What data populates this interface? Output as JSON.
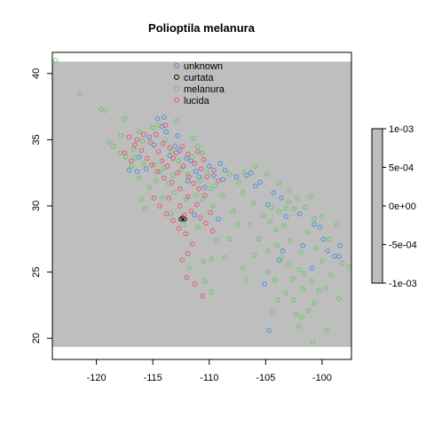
{
  "chart_data": {
    "type": "scatter",
    "title": "Polioptila melanura",
    "xlabel": "",
    "ylabel": "",
    "xlim": [
      -123.9,
      -97.4
    ],
    "ylim": [
      18.4,
      41.6
    ],
    "xticks": [
      -120,
      -115,
      -110,
      -105,
      -100
    ],
    "yticks": [
      20,
      25,
      30,
      35,
      40
    ],
    "xtick_labels": [
      "-120",
      "-115",
      "-110",
      "-105",
      "-100"
    ],
    "ytick_labels": [
      "20",
      "25",
      "30",
      "35",
      "40"
    ],
    "raster_extent": {
      "x": [
        -123.9,
        -97.4
      ],
      "y": [
        19.35,
        40.9
      ]
    },
    "raster_color": "#bebebe",
    "legend_position": "top-center",
    "colorbar": {
      "labels": [
        "1e-03",
        "5e-04",
        "0e+00",
        "-5e-04",
        "-1e-03"
      ],
      "values": [
        0.001,
        0.0005,
        0,
        -0.0005,
        -0.001
      ],
      "color": "#bebebe"
    },
    "series": [
      {
        "name": "unknown",
        "color": "#3d8fe0",
        "points": [
          [
            -114.6,
            36.6
          ],
          [
            -114.2,
            36.0
          ],
          [
            -115.3,
            35.2
          ],
          [
            -114.9,
            34.6
          ],
          [
            -113.8,
            35.6
          ],
          [
            -112.6,
            34.2
          ],
          [
            -112.0,
            33.6
          ],
          [
            -111.6,
            33.4
          ],
          [
            -111.2,
            32.6
          ],
          [
            -110.9,
            32.2
          ],
          [
            -110.0,
            33.0
          ],
          [
            -109.6,
            32.3
          ],
          [
            -108.8,
            32.0
          ],
          [
            -108.6,
            32.7
          ],
          [
            -106.3,
            32.5
          ],
          [
            -106.7,
            32.3
          ],
          [
            -105.5,
            31.8
          ],
          [
            -104.3,
            31.0
          ],
          [
            -103.6,
            30.6
          ],
          [
            -103.2,
            29.2
          ],
          [
            -102.0,
            29.4
          ],
          [
            -100.7,
            28.6
          ],
          [
            -99.9,
            27.5
          ],
          [
            -98.5,
            26.2
          ],
          [
            -99.5,
            26.6
          ],
          [
            -105.1,
            24.1
          ],
          [
            -103.8,
            25.9
          ],
          [
            -104.7,
            20.6
          ],
          [
            -116.2,
            33.7
          ],
          [
            -117.1,
            32.7
          ],
          [
            -116.4,
            32.6
          ],
          [
            -115.6,
            32.8
          ],
          [
            -113.5,
            33.8
          ],
          [
            -111.9,
            31.9
          ],
          [
            -110.4,
            31.4
          ],
          [
            -107.6,
            32.2
          ],
          [
            -105.9,
            31.5
          ],
          [
            -103.5,
            26.6
          ],
          [
            -101.7,
            27.0
          ],
          [
            -100.2,
            28.4
          ],
          [
            -98.4,
            27.0
          ],
          [
            -98.9,
            26.2
          ],
          [
            -111.3,
            29.3
          ],
          [
            -109.2,
            29.0
          ],
          [
            -112.8,
            35.3
          ],
          [
            -114.0,
            36.7
          ],
          [
            -113.0,
            34.5
          ],
          [
            -109.0,
            33.2
          ],
          [
            -104.8,
            30.1
          ],
          [
            -100.9,
            25.3
          ]
        ]
      },
      {
        "name": "curtata",
        "color": "#000000",
        "points": [
          [
            -112.5,
            29.0
          ],
          [
            -112.2,
            29.0
          ],
          [
            -112.35,
            29.1
          ]
        ]
      },
      {
        "name": "melanura",
        "color": "#62c85a",
        "points": [
          [
            -123.6,
            41.0
          ],
          [
            -121.5,
            38.5
          ],
          [
            -119.6,
            37.3
          ],
          [
            -119.3,
            37.2
          ],
          [
            -117.5,
            36.6
          ],
          [
            -116.2,
            35.6
          ],
          [
            -117.8,
            35.3
          ],
          [
            -118.5,
            34.5
          ],
          [
            -117.9,
            34.0
          ],
          [
            -116.5,
            33.6
          ],
          [
            -116.9,
            33.0
          ],
          [
            -114.9,
            33.1
          ],
          [
            -114.4,
            32.6
          ],
          [
            -113.2,
            32.3
          ],
          [
            -112.5,
            32.8
          ],
          [
            -111.5,
            33.7
          ],
          [
            -111.0,
            34.5
          ],
          [
            -110.2,
            32.5
          ],
          [
            -109.5,
            31.5
          ],
          [
            -108.2,
            32.4
          ],
          [
            -107.0,
            31.0
          ],
          [
            -106.1,
            30.2
          ],
          [
            -105.2,
            29.3
          ],
          [
            -104.5,
            29.9
          ],
          [
            -103.8,
            29.6
          ],
          [
            -103.2,
            29.8
          ],
          [
            -102.5,
            29.8
          ],
          [
            -101.5,
            29.9
          ],
          [
            -100.7,
            29.0
          ],
          [
            -101.3,
            28.0
          ],
          [
            -102.8,
            27.4
          ],
          [
            -104.0,
            27.0
          ],
          [
            -104.8,
            26.6
          ],
          [
            -103.6,
            26.1
          ],
          [
            -103.0,
            25.6
          ],
          [
            -102.0,
            25.2
          ],
          [
            -101.6,
            24.9
          ],
          [
            -100.9,
            24.3
          ],
          [
            -100.3,
            23.6
          ],
          [
            -100.7,
            22.7
          ],
          [
            -101.2,
            22.1
          ],
          [
            -101.8,
            21.6
          ],
          [
            -102.1,
            20.9
          ],
          [
            -100.8,
            19.7
          ],
          [
            -99.6,
            20.6
          ],
          [
            -104.8,
            25.0
          ],
          [
            -104.2,
            24.4
          ],
          [
            -103.2,
            23.4
          ],
          [
            -102.5,
            22.9
          ],
          [
            -101.7,
            23.7
          ],
          [
            -99.2,
            24.8
          ],
          [
            -99.7,
            23.8
          ],
          [
            -98.5,
            23.0
          ],
          [
            -99.4,
            27.5
          ],
          [
            -98.7,
            28.6
          ],
          [
            -100.0,
            29.2
          ],
          [
            -106.4,
            28.6
          ],
          [
            -107.5,
            28.6
          ],
          [
            -108.2,
            27.5
          ],
          [
            -109.8,
            26.0
          ],
          [
            -110.5,
            25.8
          ],
          [
            -111.8,
            25.3
          ],
          [
            -110.4,
            24.3
          ],
          [
            -109.8,
            23.5
          ],
          [
            -111.0,
            28.4
          ],
          [
            -112.3,
            28.6
          ],
          [
            -113.4,
            29.4
          ],
          [
            -114.2,
            30.6
          ],
          [
            -115.3,
            31.4
          ],
          [
            -116.0,
            30.5
          ],
          [
            -115.7,
            29.8
          ],
          [
            -113.1,
            31.0
          ],
          [
            -112.0,
            30.5
          ],
          [
            -111.2,
            30.8
          ],
          [
            -110.6,
            30.5
          ],
          [
            -109.7,
            30.0
          ],
          [
            -108.8,
            30.8
          ],
          [
            -107.4,
            31.8
          ],
          [
            -106.9,
            32.5
          ],
          [
            -105.9,
            33.0
          ],
          [
            -104.9,
            32.4
          ],
          [
            -103.8,
            31.7
          ],
          [
            -102.9,
            31.2
          ],
          [
            -102.2,
            30.6
          ],
          [
            -104.1,
            28.2
          ],
          [
            -103.4,
            28.5
          ],
          [
            -105.6,
            27.5
          ],
          [
            -106.0,
            26.3
          ],
          [
            -107.0,
            25.3
          ],
          [
            -100.0,
            25.8
          ],
          [
            -100.5,
            26.8
          ],
          [
            -101.9,
            26.5
          ],
          [
            -102.6,
            24.5
          ],
          [
            -103.9,
            22.9
          ],
          [
            -104.4,
            22.0
          ],
          [
            -118.9,
            34.8
          ],
          [
            -117.4,
            33.7
          ],
          [
            -116.7,
            34.3
          ],
          [
            -115.9,
            34.9
          ],
          [
            -115.0,
            35.9
          ],
          [
            -114.5,
            36.1
          ],
          [
            -113.9,
            35.0
          ],
          [
            -113.3,
            34.1
          ],
          [
            -112.7,
            33.4
          ],
          [
            -111.9,
            32.4
          ],
          [
            -110.8,
            31.9
          ],
          [
            -109.9,
            31.3
          ],
          [
            -112.9,
            36.4
          ],
          [
            -111.4,
            35.1
          ],
          [
            -110.6,
            34.0
          ],
          [
            -115.8,
            33.2
          ],
          [
            -116.2,
            32.1
          ],
          [
            -114.7,
            31.9
          ],
          [
            -114.0,
            32.9
          ],
          [
            -113.6,
            31.7
          ],
          [
            -102.3,
            21.8
          ],
          [
            -98.2,
            25.7
          ],
          [
            -97.6,
            25.4
          ],
          [
            -101.0,
            30.7
          ],
          [
            -103.0,
            30.3
          ],
          [
            -104.6,
            28.8
          ],
          [
            -107.9,
            29.6
          ],
          [
            -109.4,
            27.4
          ],
          [
            -108.6,
            26.1
          ],
          [
            -106.7,
            24.4
          ]
        ]
      },
      {
        "name": "lucida",
        "color": "#e8516a",
        "points": [
          [
            -117.1,
            35.2
          ],
          [
            -116.6,
            34.6
          ],
          [
            -116.0,
            34.2
          ],
          [
            -115.5,
            33.6
          ],
          [
            -115.1,
            33.1
          ],
          [
            -114.6,
            32.6
          ],
          [
            -114.2,
            33.4
          ],
          [
            -113.7,
            33.0
          ],
          [
            -113.2,
            33.6
          ],
          [
            -112.8,
            32.5
          ],
          [
            -112.3,
            33.0
          ],
          [
            -111.8,
            32.2
          ],
          [
            -111.4,
            31.7
          ],
          [
            -110.9,
            31.3
          ],
          [
            -110.4,
            30.8
          ],
          [
            -111.1,
            30.1
          ],
          [
            -111.9,
            30.7
          ],
          [
            -112.6,
            31.3
          ],
          [
            -113.3,
            31.8
          ],
          [
            -114.0,
            32.1
          ],
          [
            -115.2,
            34.8
          ],
          [
            -114.7,
            35.4
          ],
          [
            -114.1,
            34.7
          ],
          [
            -113.5,
            34.4
          ],
          [
            -112.9,
            34.0
          ],
          [
            -112.4,
            34.5
          ],
          [
            -111.9,
            33.9
          ],
          [
            -111.3,
            33.2
          ],
          [
            -110.7,
            32.8
          ],
          [
            -110.2,
            32.2
          ],
          [
            -109.6,
            32.7
          ],
          [
            -109.2,
            31.9
          ],
          [
            -114.9,
            30.6
          ],
          [
            -114.4,
            30.0
          ],
          [
            -113.8,
            29.4
          ],
          [
            -113.2,
            28.9
          ],
          [
            -112.7,
            28.3
          ],
          [
            -112.1,
            27.9
          ],
          [
            -111.5,
            27.1
          ],
          [
            -111.9,
            26.4
          ],
          [
            -112.4,
            25.9
          ],
          [
            -112.0,
            24.6
          ],
          [
            -111.3,
            24.1
          ],
          [
            -110.6,
            23.2
          ],
          [
            -111.6,
            29.6
          ],
          [
            -112.2,
            29.3
          ],
          [
            -110.8,
            29.1
          ],
          [
            -110.3,
            28.7
          ],
          [
            -109.7,
            28.1
          ],
          [
            -116.4,
            35.0
          ],
          [
            -115.8,
            35.4
          ],
          [
            -117.5,
            34.0
          ],
          [
            -116.9,
            33.4
          ],
          [
            -113.9,
            36.1
          ],
          [
            -114.5,
            34.1
          ],
          [
            -111.0,
            34.1
          ],
          [
            -110.5,
            33.5
          ],
          [
            -112.6,
            30.0
          ],
          [
            -113.6,
            30.6
          ],
          [
            -109.9,
            29.5
          ]
        ]
      }
    ]
  }
}
